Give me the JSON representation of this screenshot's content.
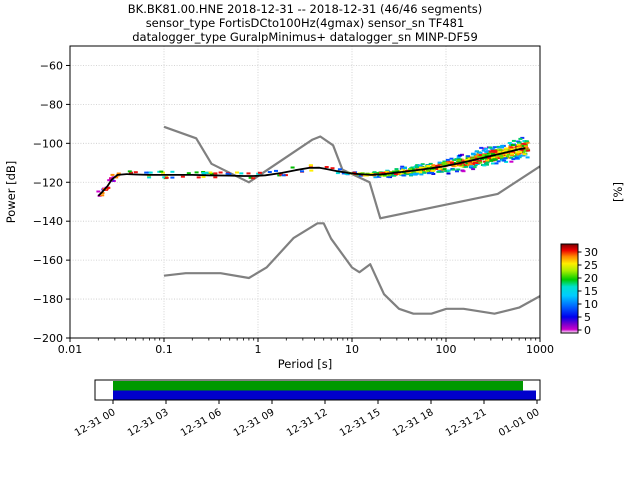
{
  "title": {
    "line1": "BK.BK81.00.HNE   2018-12-31 -- 2018-12-31  (46/46 segments)",
    "line2": "sensor_type FortisDCto100Hz(4gmax) sensor_sn TF481",
    "line3": "datalogger_type GuralpMinimus+ datalogger_sn MINP-DF59"
  },
  "chart_data": {
    "type": "line",
    "title": "BK.BK81.00.HNE 2018-12-31 -- 2018-12-31 (46/46 segments)",
    "xlabel": "Period [s]",
    "ylabel": "Power [dB]",
    "ylabel_right": "[%]",
    "xscale": "log",
    "xlim": [
      0.01,
      1000
    ],
    "ylim": [
      -200,
      -50
    ],
    "xticks": [
      0.01,
      0.1,
      1,
      10,
      100,
      1000
    ],
    "xtick_labels": [
      "0.01",
      "0.1",
      "1",
      "10",
      "100",
      "1000"
    ],
    "ytick_values": [
      -60,
      -80,
      -100,
      -120,
      -140,
      -160,
      -180,
      -200
    ],
    "ytick_labels": [
      "−60",
      "−80",
      "−100",
      "−120",
      "−140",
      "−160",
      "−180",
      "−200"
    ],
    "grid": true,
    "series": [
      {
        "name": "noise_model_high",
        "color": "#808080",
        "width": 2.2,
        "x": [
          0.1,
          0.22,
          0.32,
          0.8,
          3.8,
          4.6,
          6.3,
          7.9,
          15.4,
          20,
          354.8,
          1000
        ],
        "y": [
          -91.5,
          -97.4,
          -110.5,
          -120.0,
          -98.1,
          -96.5,
          -101.0,
          -113.5,
          -120.0,
          -138.5,
          -126.0,
          -111.8
        ]
      },
      {
        "name": "noise_model_low",
        "color": "#808080",
        "width": 2.2,
        "x": [
          0.1,
          0.17,
          0.4,
          0.8,
          1.24,
          2.4,
          4.3,
          5.0,
          6.0,
          10.0,
          12.0,
          15.6,
          21.9,
          31.6,
          45.0,
          70.0,
          101.0,
          154.0,
          328.0,
          600.0,
          1000
        ],
        "y": [
          -168.0,
          -166.7,
          -166.7,
          -169.2,
          -163.7,
          -148.6,
          -141.1,
          -141.1,
          -149.0,
          -163.8,
          -166.2,
          -162.1,
          -177.5,
          -185.0,
          -187.5,
          -187.5,
          -185.0,
          -185.0,
          -187.5,
          -184.4,
          -178.5
        ]
      },
      {
        "name": "ppsd_mode",
        "color": "#000000",
        "width": 1.8,
        "x": [
          0.02,
          0.022,
          0.025,
          0.028,
          0.032,
          0.04,
          0.05,
          0.07,
          0.1,
          0.15,
          0.2,
          0.3,
          0.5,
          0.7,
          0.9,
          1.2,
          1.8,
          2.5,
          3.5,
          4.5,
          5.5,
          7,
          9,
          12,
          16,
          22,
          30,
          45,
          65,
          90,
          130,
          200,
          300,
          450,
          600,
          700
        ],
        "y": [
          -127,
          -125,
          -122,
          -118.5,
          -116.2,
          -115.8,
          -116,
          -116.2,
          -116.2,
          -116.2,
          -116.2,
          -116.4,
          -116.6,
          -116.8,
          -116.8,
          -116.4,
          -115.2,
          -113.8,
          -112.6,
          -112.5,
          -113.3,
          -114.3,
          -115.2,
          -115.8,
          -116.2,
          -115.8,
          -115,
          -114,
          -113,
          -112,
          -110.5,
          -108.5,
          -106.5,
          -104.5,
          -103,
          -102.5
        ]
      }
    ],
    "histogram_band": {
      "x_start": 8,
      "x_end": 750,
      "max_spread_db": 8,
      "speckle_colors": {
        "edge": [
          "#cc00cc",
          "#7a00cc",
          "#0000dd",
          "#1133ff"
        ],
        "mid": [
          "#0055ff",
          "#00aaff",
          "#00dddd",
          "#00cc66"
        ],
        "inner": [
          "#00bb00",
          "#66dd00",
          "#ffee00",
          "#ff8800",
          "#ee1111"
        ]
      }
    },
    "colorbar": {
      "label": "[%]",
      "ticks": [
        30,
        25,
        20,
        15,
        10,
        5,
        0
      ],
      "tick_labels": [
        "30",
        "25",
        "20",
        "15",
        "10",
        "5",
        "0"
      ],
      "gradient": [
        [
          0.0,
          "#ffffff"
        ],
        [
          0.04,
          "#cc00cc"
        ],
        [
          0.1,
          "#7a00cc"
        ],
        [
          0.18,
          "#0000ee"
        ],
        [
          0.3,
          "#0066ff"
        ],
        [
          0.42,
          "#00ccff"
        ],
        [
          0.52,
          "#00e0d0"
        ],
        [
          0.6,
          "#00cc00"
        ],
        [
          0.7,
          "#aaee00"
        ],
        [
          0.78,
          "#ffee00"
        ],
        [
          0.86,
          "#ff8800"
        ],
        [
          0.93,
          "#ee0000"
        ],
        [
          1.0,
          "#7a0000"
        ]
      ]
    }
  },
  "coverage": {
    "green_color": "#009900",
    "blue_color": "#0000cc",
    "time_labels": [
      "12-31 00",
      "12-31 03",
      "12-31 06",
      "12-31 09",
      "12-31 12",
      "12-31 15",
      "12-31 18",
      "12-31 21",
      "01-01 00"
    ]
  }
}
